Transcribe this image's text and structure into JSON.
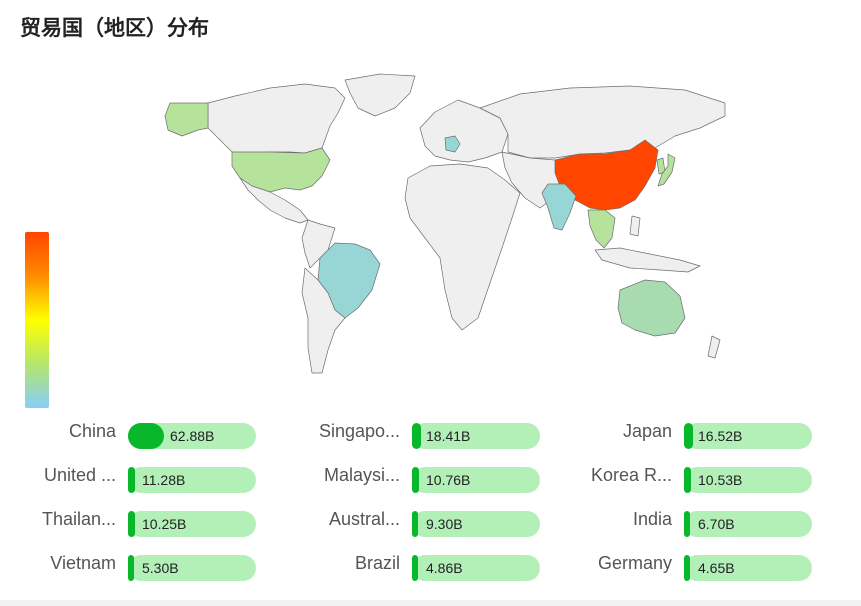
{
  "title": "贸易国（地区）分布",
  "colors": {
    "china": "#ff4500",
    "mid_green": "#a8e0a0",
    "teal": "#98d6d6",
    "default_land": "#efefef",
    "bar_fill": "#09b82a",
    "bar_track": "#b3f0b8"
  },
  "chart_data": {
    "type": "map",
    "title": "",
    "legend_placement": "bottom-left",
    "max_value": 62.88,
    "unit": "B",
    "ranking": [
      {
        "name": "China",
        "value": 62.88,
        "label": "62.88B"
      },
      {
        "name": "Singapo...",
        "value": 18.41,
        "label": "18.41B"
      },
      {
        "name": "Japan",
        "value": 16.52,
        "label": "16.52B"
      },
      {
        "name": "United ...",
        "value": 11.28,
        "label": "11.28B"
      },
      {
        "name": "Malaysi...",
        "value": 10.76,
        "label": "10.76B"
      },
      {
        "name": "Korea R...",
        "value": 10.53,
        "label": "10.53B"
      },
      {
        "name": "Thailan...",
        "value": 10.25,
        "label": "10.25B"
      },
      {
        "name": "Austral...",
        "value": 9.3,
        "label": "9.30B"
      },
      {
        "name": "India",
        "value": 6.7,
        "label": "6.70B"
      },
      {
        "name": "Vietnam",
        "value": 5.3,
        "label": "5.30B"
      },
      {
        "name": "Brazil",
        "value": 4.86,
        "label": "4.86B"
      },
      {
        "name": "Germany",
        "value": 4.65,
        "label": "4.65B"
      }
    ]
  }
}
